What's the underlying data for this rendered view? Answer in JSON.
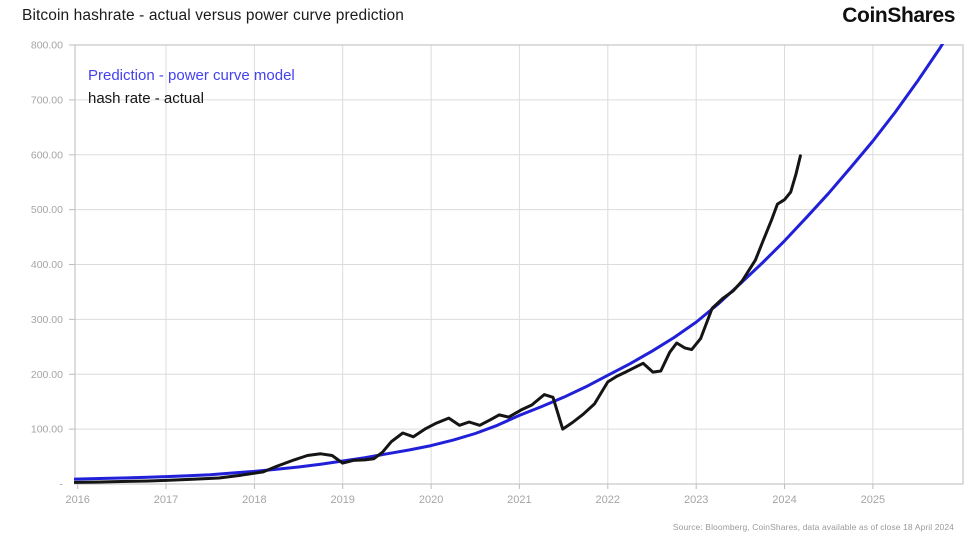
{
  "header": {
    "title": "Bitcoin hashrate - actual versus power curve prediction",
    "logo": "CoinShares"
  },
  "legend": {
    "prediction_label": "Prediction - power curve model",
    "actual_label": "hash rate - actual"
  },
  "footer": {
    "source": "Source: Bloomberg, CoinShares, data available as of close 18 April 2024"
  },
  "colors": {
    "prediction_line": "#2120d9",
    "prediction_text": "#4342ee",
    "actual_line": "#151515",
    "grid": "#dcdcdc",
    "border": "#c6c6c6",
    "tick": "#bdbdbd",
    "tick_text": "#a5a5a5"
  },
  "chart_data": {
    "type": "line",
    "title": "Bitcoin hashrate - actual versus power curve prediction",
    "xlabel": "",
    "ylabel": "",
    "x_range": [
      2015.97,
      2026.02
    ],
    "y_range": [
      0,
      800
    ],
    "grid": true,
    "legend_position": "top-left",
    "y_ticks": [
      {
        "value": 800,
        "label": "800.00"
      },
      {
        "value": 700,
        "label": "700.00"
      },
      {
        "value": 600,
        "label": "600.00"
      },
      {
        "value": 500,
        "label": "500.00"
      },
      {
        "value": 400,
        "label": "400.00"
      },
      {
        "value": 300,
        "label": "300.00"
      },
      {
        "value": 200,
        "label": "200.00"
      },
      {
        "value": 100,
        "label": "100.00"
      },
      {
        "value": 0,
        "label": "-"
      }
    ],
    "x_ticks": [
      {
        "value": 2016,
        "label": "2016"
      },
      {
        "value": 2017,
        "label": "2017"
      },
      {
        "value": 2018,
        "label": "2018"
      },
      {
        "value": 2019,
        "label": "2019"
      },
      {
        "value": 2020,
        "label": "2020"
      },
      {
        "value": 2021,
        "label": "2021"
      },
      {
        "value": 2022,
        "label": "2022"
      },
      {
        "value": 2023,
        "label": "2023"
      },
      {
        "value": 2024,
        "label": "2024"
      },
      {
        "value": 2025,
        "label": "2025"
      }
    ],
    "grid_years": [
      2017,
      2018,
      2019,
      2020,
      2021,
      2022,
      2023,
      2024,
      2025
    ],
    "grid_values": [
      100,
      200,
      300,
      400,
      500,
      600,
      700
    ],
    "series": [
      {
        "name": "Prediction - power curve model",
        "color_key": "prediction_line",
        "points": [
          [
            2015.97,
            9
          ],
          [
            2016.25,
            10
          ],
          [
            2016.5,
            11
          ],
          [
            2016.75,
            12
          ],
          [
            2017,
            13.5
          ],
          [
            2017.25,
            15
          ],
          [
            2017.5,
            17
          ],
          [
            2017.75,
            20
          ],
          [
            2018,
            23
          ],
          [
            2018.25,
            27
          ],
          [
            2018.5,
            31
          ],
          [
            2018.75,
            36
          ],
          [
            2019,
            42
          ],
          [
            2019.25,
            48
          ],
          [
            2019.5,
            55
          ],
          [
            2019.75,
            62
          ],
          [
            2020,
            70
          ],
          [
            2020.25,
            80
          ],
          [
            2020.5,
            92
          ],
          [
            2020.75,
            107
          ],
          [
            2021,
            125
          ],
          [
            2021.25,
            141
          ],
          [
            2021.5,
            158
          ],
          [
            2021.75,
            177
          ],
          [
            2022,
            198
          ],
          [
            2022.25,
            219
          ],
          [
            2022.5,
            242
          ],
          [
            2022.75,
            267
          ],
          [
            2023,
            295
          ],
          [
            2023.25,
            328
          ],
          [
            2023.5,
            365
          ],
          [
            2023.75,
            403
          ],
          [
            2024,
            443
          ],
          [
            2024.25,
            486
          ],
          [
            2024.5,
            530
          ],
          [
            2024.75,
            577
          ],
          [
            2025,
            625
          ],
          [
            2025.25,
            677
          ],
          [
            2025.5,
            733
          ],
          [
            2025.75,
            792
          ],
          [
            2026.02,
            862
          ]
        ]
      },
      {
        "name": "hash rate - actual",
        "color_key": "actual_line",
        "points": [
          [
            2015.97,
            3
          ],
          [
            2016.2,
            3.5
          ],
          [
            2016.5,
            4.5
          ],
          [
            2016.8,
            5.5
          ],
          [
            2017,
            6.5
          ],
          [
            2017.3,
            8.5
          ],
          [
            2017.6,
            11
          ],
          [
            2017.85,
            16
          ],
          [
            2018.1,
            22
          ],
          [
            2018.25,
            32
          ],
          [
            2018.45,
            44
          ],
          [
            2018.6,
            52
          ],
          [
            2018.75,
            55
          ],
          [
            2018.88,
            52
          ],
          [
            2019,
            38
          ],
          [
            2019.12,
            43
          ],
          [
            2019.25,
            44
          ],
          [
            2019.35,
            46
          ],
          [
            2019.45,
            58
          ],
          [
            2019.55,
            77
          ],
          [
            2019.68,
            93
          ],
          [
            2019.8,
            86
          ],
          [
            2019.93,
            100
          ],
          [
            2020.06,
            111
          ],
          [
            2020.2,
            120
          ],
          [
            2020.32,
            107
          ],
          [
            2020.43,
            113
          ],
          [
            2020.55,
            107
          ],
          [
            2020.67,
            117
          ],
          [
            2020.77,
            126
          ],
          [
            2020.88,
            122
          ],
          [
            2021.02,
            135
          ],
          [
            2021.14,
            144
          ],
          [
            2021.28,
            163
          ],
          [
            2021.38,
            158
          ],
          [
            2021.49,
            100
          ],
          [
            2021.6,
            112
          ],
          [
            2021.72,
            127
          ],
          [
            2021.85,
            146
          ],
          [
            2022,
            186
          ],
          [
            2022.1,
            196
          ],
          [
            2022.2,
            204
          ],
          [
            2022.3,
            212
          ],
          [
            2022.4,
            220
          ],
          [
            2022.51,
            204
          ],
          [
            2022.6,
            206
          ],
          [
            2022.7,
            240
          ],
          [
            2022.78,
            257
          ],
          [
            2022.87,
            248
          ],
          [
            2022.95,
            245
          ],
          [
            2023.05,
            265
          ],
          [
            2023.18,
            320
          ],
          [
            2023.3,
            338
          ],
          [
            2023.42,
            352
          ],
          [
            2023.52,
            370
          ],
          [
            2023.62,
            395
          ],
          [
            2023.67,
            408
          ],
          [
            2023.75,
            440
          ],
          [
            2023.85,
            480
          ],
          [
            2023.92,
            510
          ],
          [
            2024,
            518
          ],
          [
            2024.07,
            532
          ],
          [
            2024.13,
            565
          ],
          [
            2024.18,
            598
          ]
        ]
      }
    ]
  }
}
